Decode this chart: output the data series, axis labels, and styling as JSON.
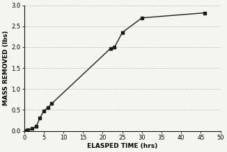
{
  "x": [
    0,
    0.5,
    1,
    2,
    3,
    4,
    5,
    6,
    7,
    22,
    23,
    25,
    30,
    46
  ],
  "y": [
    0,
    0.01,
    0.02,
    0.05,
    0.1,
    0.3,
    0.48,
    0.55,
    0.65,
    1.97,
    2.0,
    2.35,
    2.7,
    2.82
  ],
  "line_color": "#1a1a1a",
  "marker_color": "#1a1a1a",
  "marker": "s",
  "markersize": 3.5,
  "linewidth": 1.0,
  "xlabel": "ELASPED TIME (hrs)",
  "ylabel": "MASS REMOVED (lbs)",
  "xlim": [
    0,
    50
  ],
  "ylim": [
    0,
    3.0
  ],
  "xticks": [
    0,
    5,
    10,
    15,
    20,
    25,
    30,
    35,
    40,
    45,
    50
  ],
  "yticks": [
    0,
    0.5,
    1.0,
    1.5,
    2.0,
    2.5,
    3.0
  ],
  "grid_y_values": [
    0,
    0.5,
    1.0,
    1.5,
    2.0,
    2.5,
    3.0
  ],
  "grid_color": "#aaaaaa",
  "grid_linestyle": "--",
  "grid_linewidth": 0.4,
  "bg_color": "#f5f5f0",
  "xlabel_fontsize": 6.5,
  "ylabel_fontsize": 6.5,
  "tick_fontsize": 6.0
}
